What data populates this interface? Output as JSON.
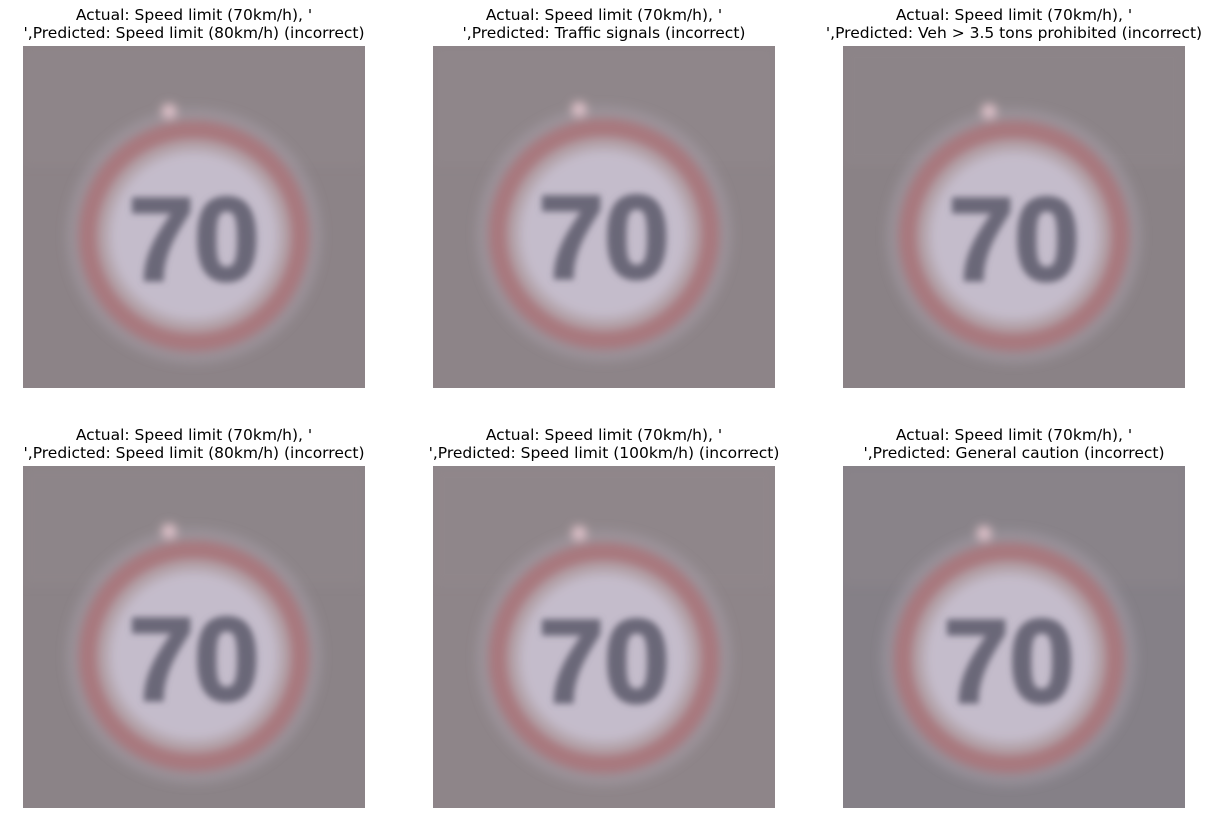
{
  "panels": [
    {
      "actual_line": "Actual: Speed limit (70km/h), '",
      "predicted_line": "',Predicted: Speed limit (80km/h) (incorrect)",
      "sign_text": "70",
      "bg_color": "#8c8387"
    },
    {
      "actual_line": "Actual: Speed limit (70km/h), '",
      "predicted_line": "',Predicted: Traffic signals (incorrect)",
      "sign_text": "70",
      "bg_color": "#8d8488"
    },
    {
      "actual_line": "Actual: Speed limit (70km/h), '",
      "predicted_line": "',Predicted: Veh > 3.5 tons prohibited (incorrect)",
      "sign_text": "70",
      "bg_color": "#8a8286"
    },
    {
      "actual_line": "Actual: Speed limit (70km/h), '",
      "predicted_line": "',Predicted: Speed limit (80km/h) (incorrect)",
      "sign_text": "70",
      "bg_color": "#8b8387"
    },
    {
      "actual_line": "Actual: Speed limit (70km/h), '",
      "predicted_line": "',Predicted: Speed limit (100km/h) (incorrect)",
      "sign_text": "70",
      "bg_color": "#8e8589"
    },
    {
      "actual_line": "Actual: Speed limit (70km/h), '",
      "predicted_line": "',Predicted: General caution (incorrect)",
      "sign_text": "70",
      "bg_color": "#858087"
    }
  ]
}
